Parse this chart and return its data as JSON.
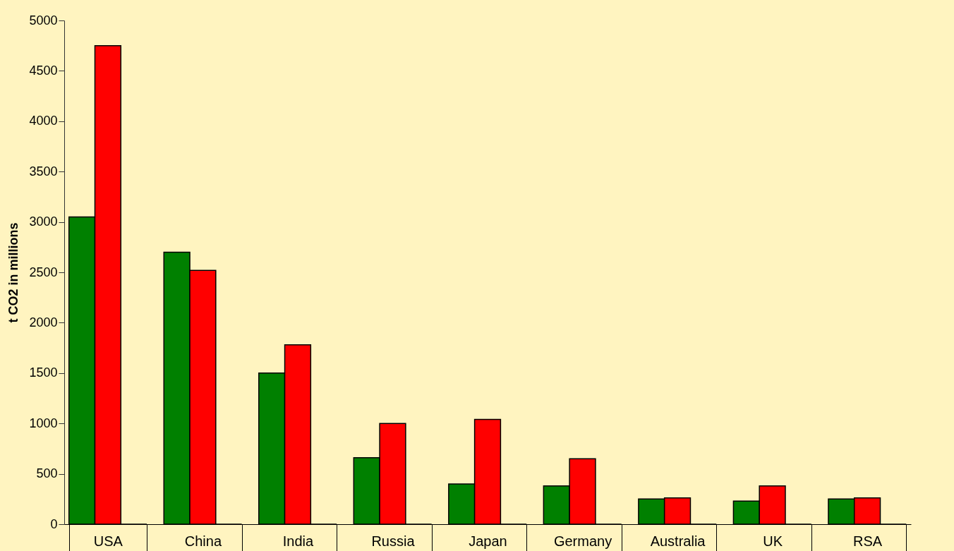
{
  "chart_data": {
    "type": "bar",
    "ylabel": "t CO2 in millions",
    "categories": [
      "USA",
      "China",
      "India",
      "Russia",
      "Japan",
      "Germany",
      "Australia",
      "UK",
      "RSA"
    ],
    "series": [
      {
        "color": "#008000",
        "values": [
          3050,
          2700,
          1500,
          660,
          400,
          380,
          250,
          230,
          250
        ]
      },
      {
        "color": "#ff0000",
        "values": [
          4750,
          2520,
          1780,
          1000,
          1040,
          650,
          260,
          380,
          260
        ]
      },
      {
        "color": "#000000",
        "values": [
          0,
          0,
          0,
          0,
          0,
          0,
          0,
          0,
          0
        ]
      }
    ],
    "ylim": [
      0,
      5000
    ],
    "yticks": [
      0,
      500,
      1000,
      1500,
      2000,
      2500,
      3000,
      3500,
      4000,
      4500,
      5000
    ],
    "grid": false
  }
}
